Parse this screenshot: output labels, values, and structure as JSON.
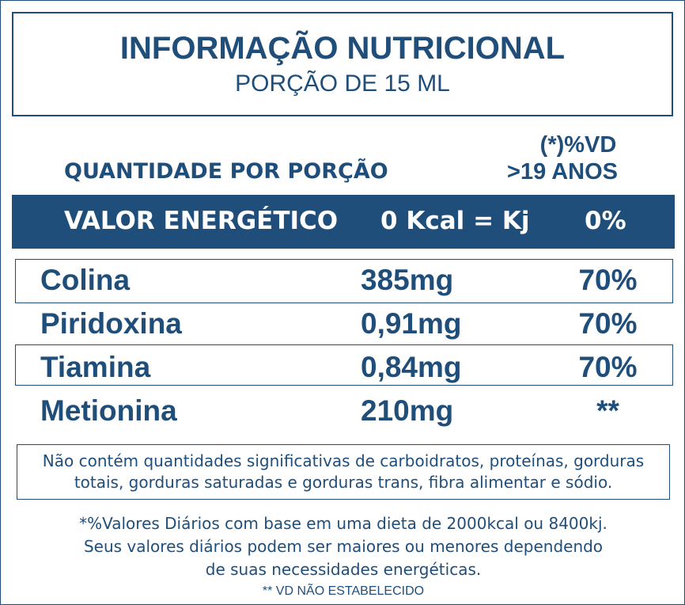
{
  "header": {
    "title": "INFORMAÇÃO NUTRICIONAL",
    "subtitle": "PORÇÃO DE 15 ML"
  },
  "table": {
    "column_headers": {
      "quantity": "QUANTIDADE POR PORÇÃO",
      "vd_line1": "(*)%VD",
      "vd_line2": ">19 ANOS"
    },
    "energy": {
      "label": "VALOR ENERGÉTICO",
      "amount": "0 Kcal = Kj",
      "vd": "0%"
    },
    "rows": [
      [
        "Colina",
        "385mg",
        "70%"
      ],
      [
        "Piridoxina",
        "0,91mg",
        "70%"
      ],
      [
        "Tiamina",
        "0,84mg",
        "70%"
      ],
      [
        "Metionina",
        "210mg",
        "**"
      ]
    ]
  },
  "notes": {
    "insignificant": [
      "Não contém quantidades significativas de carboidratos, proteínas, gorduras",
      "totais, gorduras saturadas e gorduras trans, fibra alimentar e sódio."
    ],
    "footnotes": [
      "*%Valores Diários com base em uma dieta de 2000kcal ou 8400kj.",
      "Seus valores diários podem ser maiores ou menores dependendo",
      "de suas necessidades energéticas."
    ],
    "not_established": "** VD NÃO ESTABELECIDO"
  }
}
